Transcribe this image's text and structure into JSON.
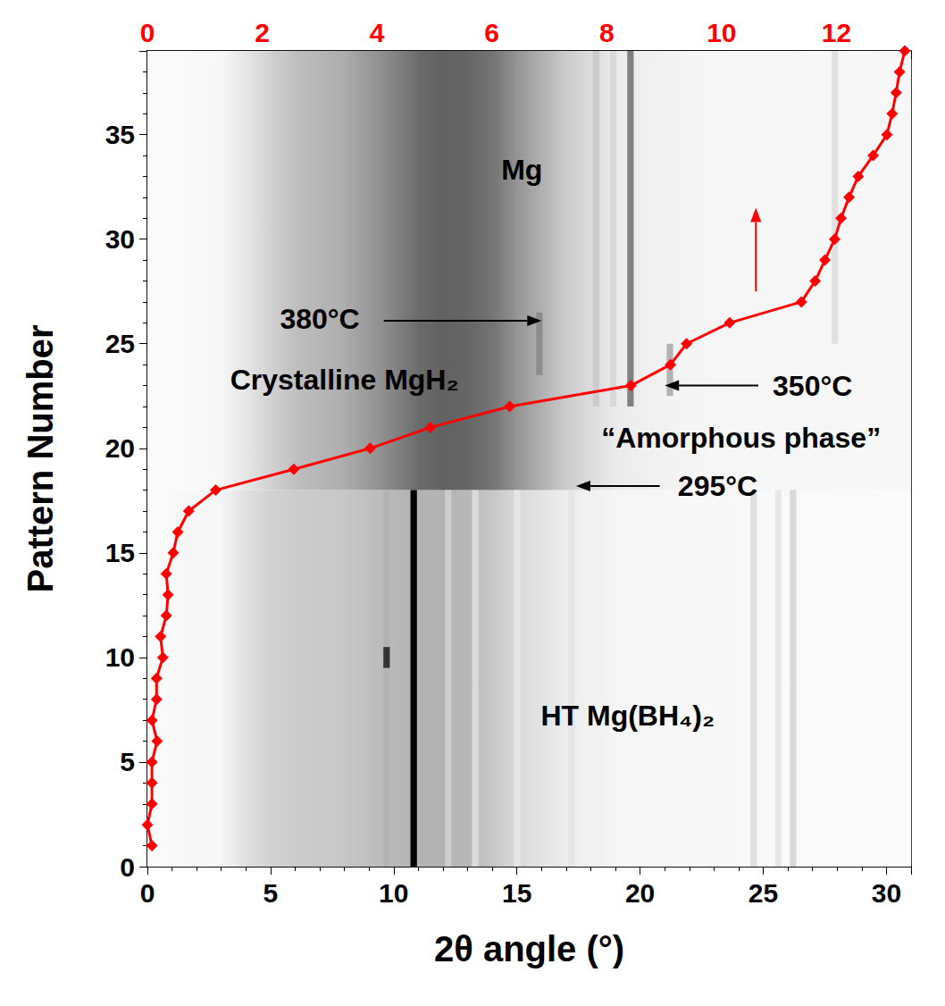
{
  "chart_data": {
    "type": "line",
    "x_label": "2θ angle (°)",
    "y_label": "Pattern Number",
    "xlim": [
      0,
      31
    ],
    "xticks": [
      0,
      5,
      10,
      15,
      20,
      25,
      30
    ],
    "x2lim": [
      0,
      13.3
    ],
    "x2ticks": [
      0,
      2,
      4,
      6,
      8,
      10,
      12
    ],
    "x2_color": "#ff0000",
    "ylim": [
      0,
      39
    ],
    "yticks": [
      0,
      5,
      10,
      15,
      20,
      25,
      30,
      35
    ],
    "grid": false,
    "series": [
      {
        "axis": "x2",
        "color": "#ff0000",
        "marker": "diamond",
        "line_style": "solid",
        "x": [
          0.08,
          0.0,
          0.08,
          0.08,
          0.08,
          0.17,
          0.08,
          0.16,
          0.16,
          0.27,
          0.23,
          0.33,
          0.36,
          0.33,
          0.45,
          0.53,
          0.72,
          1.19,
          2.55,
          3.88,
          4.93,
          6.31,
          8.42,
          9.11,
          9.39,
          10.14,
          11.39,
          11.63,
          11.8,
          11.97,
          12.08,
          12.22,
          12.38,
          12.64,
          12.88,
          12.97,
          13.04,
          13.1,
          13.19
        ],
        "values": [
          1,
          2,
          3,
          4,
          5,
          6,
          7,
          8,
          9,
          10,
          11,
          12,
          13,
          14,
          15,
          16,
          17,
          18,
          19,
          20,
          21,
          22,
          23,
          24,
          25,
          26,
          27,
          28,
          29,
          30,
          31,
          32,
          33,
          34,
          35,
          36,
          37,
          38,
          39
        ]
      }
    ],
    "intensity_map": {
      "background": [
        {
          "patterns": [
            0,
            18
          ],
          "two_theta": [
            0,
            3,
            4,
            5,
            6,
            8,
            10,
            11,
            12,
            13,
            14,
            15,
            17,
            19,
            22,
            31
          ],
          "intensity": [
            0.02,
            0.04,
            0.12,
            0.18,
            0.2,
            0.22,
            0.28,
            0.3,
            0.3,
            0.28,
            0.22,
            0.15,
            0.07,
            0.04,
            0.03,
            0.02
          ]
        },
        {
          "patterns": [
            18,
            39
          ],
          "two_theta": [
            0,
            3,
            4,
            5,
            6,
            8,
            10,
            11,
            12,
            13,
            14,
            15,
            17,
            19,
            22,
            31
          ],
          "intensity": [
            0.02,
            0.03,
            0.1,
            0.18,
            0.25,
            0.32,
            0.48,
            0.58,
            0.62,
            0.6,
            0.55,
            0.42,
            0.2,
            0.08,
            0.04,
            0.03
          ]
        }
      ],
      "peaks": [
        {
          "two_theta": 10.8,
          "patterns": [
            0,
            18
          ],
          "intensity": 1.0
        },
        {
          "two_theta": 9.7,
          "patterns": [
            0,
            18
          ],
          "intensity": 0.3
        },
        {
          "two_theta": 9.7,
          "patterns": [
            9.5,
            10.5
          ],
          "intensity": 0.8
        },
        {
          "two_theta": 12.2,
          "patterns": [
            0,
            18
          ],
          "intensity": 0.2
        },
        {
          "two_theta": 13.3,
          "patterns": [
            0,
            18
          ],
          "intensity": 0.15
        },
        {
          "two_theta": 15.0,
          "patterns": [
            0,
            18
          ],
          "intensity": 0.1
        },
        {
          "two_theta": 17.2,
          "patterns": [
            0,
            18
          ],
          "intensity": 0.1
        },
        {
          "two_theta": 24.6,
          "patterns": [
            0,
            18
          ],
          "intensity": 0.12
        },
        {
          "two_theta": 25.6,
          "patterns": [
            0,
            18
          ],
          "intensity": 0.1
        },
        {
          "two_theta": 26.2,
          "patterns": [
            0,
            18
          ],
          "intensity": 0.15
        },
        {
          "two_theta": 15.9,
          "patterns": [
            23.5,
            26.5
          ],
          "intensity": 0.45
        },
        {
          "two_theta": 21.2,
          "patterns": [
            22.5,
            25
          ],
          "intensity": 0.3
        },
        {
          "two_theta": 18.2,
          "patterns": [
            22,
            39
          ],
          "intensity": 0.2
        },
        {
          "two_theta": 18.9,
          "patterns": [
            22,
            39
          ],
          "intensity": 0.15
        },
        {
          "two_theta": 19.6,
          "patterns": [
            22,
            39
          ],
          "intensity": 0.5
        },
        {
          "two_theta": 27.9,
          "patterns": [
            25,
            39
          ],
          "intensity": 0.12
        }
      ]
    },
    "annotations": [
      {
        "text": "Mg",
        "x": 15.2,
        "y": 33.3
      },
      {
        "text": "380°C",
        "x": 7.0,
        "y": 26.2
      },
      {
        "text": "Crystalline MgH₂",
        "x": 8.0,
        "y": 23.3
      },
      {
        "text": "350°C",
        "x": 27.0,
        "y": 23.0
      },
      {
        "text": "“Amorphous phase”",
        "x": 24.1,
        "y": 20.5
      },
      {
        "text": "295°C",
        "x": 23.15,
        "y": 18.2
      },
      {
        "text": "HT Mg(BH₄)₂",
        "x": 19.5,
        "y": 7.2
      }
    ],
    "arrows": [
      {
        "from": [
          9.6,
          26.1
        ],
        "to": [
          16.0,
          26.1
        ],
        "color": "#000000"
      },
      {
        "from": [
          24.8,
          23.0
        ],
        "to": [
          21.0,
          23.0
        ],
        "color": "#000000"
      },
      {
        "from": [
          20.8,
          18.2
        ],
        "to": [
          17.4,
          18.2
        ],
        "color": "#000000"
      },
      {
        "from": [
          24.7,
          27.5
        ],
        "to": [
          24.7,
          31.5
        ],
        "color": "#ff0000"
      }
    ]
  }
}
